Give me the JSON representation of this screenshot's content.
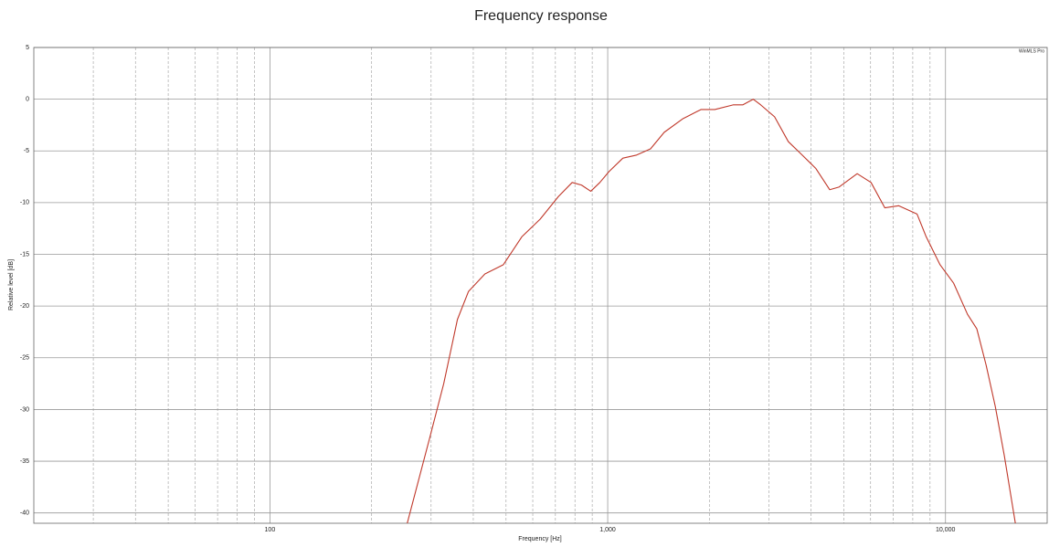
{
  "chart_data": {
    "type": "line",
    "title": "Frequency response",
    "xlabel": "Frequency [Hz]",
    "ylabel": "Relative level [dB]",
    "annotation": "WinMLS Pro",
    "xscale": "log",
    "xlim": [
      20,
      20000
    ],
    "ylim": [
      -41,
      5
    ],
    "xticks": [
      100,
      {
        "value": 1000,
        "label": "1,000"
      },
      {
        "value": 10000,
        "label": "10,000"
      }
    ],
    "x_minor_grid": [
      30,
      40,
      50,
      60,
      70,
      80,
      90,
      200,
      300,
      400,
      500,
      600,
      700,
      800,
      900,
      2000,
      3000,
      4000,
      5000,
      6000,
      7000,
      8000,
      9000
    ],
    "yticks": [
      5,
      0,
      -5,
      -10,
      -15,
      -20,
      -25,
      -30,
      -35,
      -40
    ],
    "grid": true,
    "series": [
      {
        "name": "Frequency response",
        "color": "#c0392b",
        "x": [
          255,
          298,
          327,
          359,
          387,
          433,
          491,
          557,
          631,
          715,
          785,
          836,
          891,
          948,
          1009,
          1109,
          1218,
          1339,
          1470,
          1667,
          1888,
          2075,
          2351,
          2510,
          2698,
          2838,
          3119,
          3425,
          3764,
          4133,
          4541,
          4835,
          5477,
          6020,
          6611,
          7265,
          8236,
          8767,
          9633,
          10575,
          11620,
          12380,
          13190,
          14040,
          14940,
          16100
        ],
        "values": [
          -41,
          -32.6,
          -27.5,
          -21.3,
          -18.6,
          -16.9,
          -16,
          -13.3,
          -11.6,
          -9.4,
          -8.05,
          -8.3,
          -8.9,
          -8.05,
          -7,
          -5.7,
          -5.4,
          -4.8,
          -3.2,
          -1.9,
          -1,
          -1,
          -0.55,
          -0.55,
          0,
          -0.55,
          -1.7,
          -4.1,
          -5.4,
          -6.7,
          -8.75,
          -8.5,
          -7.2,
          -8.05,
          -10.5,
          -10.3,
          -11.1,
          -13.3,
          -16,
          -17.8,
          -20.8,
          -22.2,
          -25.7,
          -29.7,
          -34.5,
          -41
        ]
      }
    ]
  }
}
